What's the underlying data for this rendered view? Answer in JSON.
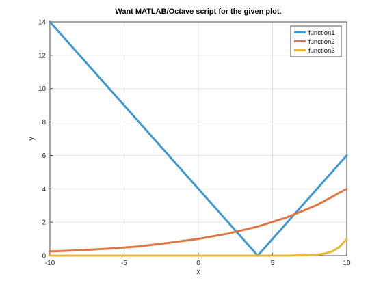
{
  "chart_data": {
    "type": "line",
    "title": "Want MATLAB/Octave script for the given plot.",
    "xlabel": "x",
    "ylabel": "y",
    "xlim": [
      -10,
      10
    ],
    "ylim": [
      0,
      14
    ],
    "xticks": [
      -10,
      -5,
      0,
      5,
      10
    ],
    "yticks": [
      0,
      2,
      4,
      6,
      8,
      10,
      12,
      14
    ],
    "grid": true,
    "legend_position": "top-right",
    "series": [
      {
        "name": "function1",
        "color": "#3d97d0",
        "x": [
          -10,
          -8,
          -6,
          -4,
          -2,
          0,
          2,
          4,
          6,
          8,
          10
        ],
        "y": [
          14,
          12,
          10,
          8,
          6,
          4,
          2,
          0,
          2,
          4,
          6
        ]
      },
      {
        "name": "function2",
        "color": "#df7646",
        "x": [
          -10,
          -8,
          -6,
          -4,
          -2,
          0,
          2,
          4,
          6,
          8,
          10
        ],
        "y": [
          0.25,
          0.32,
          0.42,
          0.55,
          0.76,
          1.0,
          1.32,
          1.74,
          2.3,
          3.03,
          4.0
        ]
      },
      {
        "name": "function3",
        "color": "#ecb732",
        "x": [
          -10,
          -4,
          0,
          4,
          6,
          7,
          8,
          8.5,
          9,
          9.5,
          10
        ],
        "y": [
          0,
          0,
          0,
          0,
          0.0,
          0.02,
          0.06,
          0.12,
          0.24,
          0.5,
          1.0
        ]
      }
    ]
  }
}
